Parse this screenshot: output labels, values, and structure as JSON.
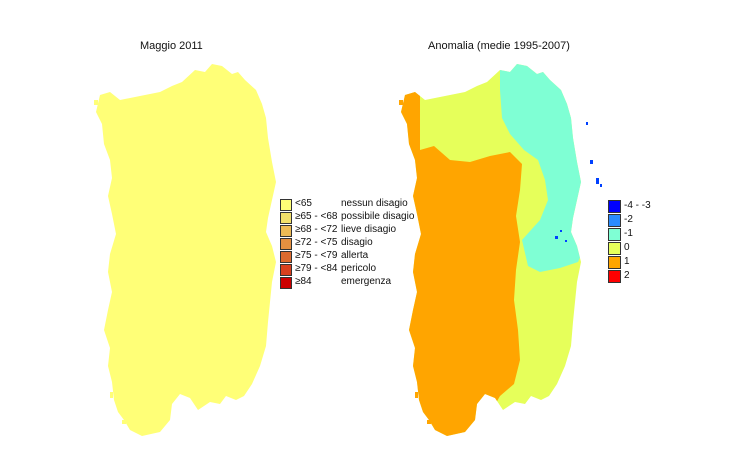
{
  "maps": {
    "left": {
      "title": "Maggio 2011",
      "fill_color": "#FFFF77"
    },
    "right": {
      "title": "Anomalia (medie 1995-2007)",
      "colors": {
        "west": "#FFA500",
        "middle": "#E6FF5A",
        "northeast": "#7FFFD4",
        "dots_blue": "#0040FF"
      }
    }
  },
  "legend_discomfort": {
    "items": [
      {
        "range": "<65",
        "label": "nessun disagio",
        "color": "#FFFF77"
      },
      {
        "range": "≥65 - <68",
        "label": "possibile disagio",
        "color": "#F2E06A"
      },
      {
        "range": "≥68 - <72",
        "label": "lieve disagio",
        "color": "#EEBB55"
      },
      {
        "range": "≥72 - <75",
        "label": "disagio",
        "color": "#E59040"
      },
      {
        "range": "≥75 - <79",
        "label": "allerta",
        "color": "#DD6A2E"
      },
      {
        "range": "≥79 - <84",
        "label": "pericolo",
        "color": "#D8401E"
      },
      {
        "range": "≥84",
        "label": "emergenza",
        "color": "#CC0000"
      }
    ]
  },
  "legend_anomaly": {
    "items": [
      {
        "label": "-4 - -3",
        "color": "#0000FF"
      },
      {
        "label": "-2",
        "color": "#2A8CFF"
      },
      {
        "label": "-1",
        "color": "#7FFFD4"
      },
      {
        "label": "0",
        "color": "#E6FF5A"
      },
      {
        "label": "1",
        "color": "#FFA500"
      },
      {
        "label": "2",
        "color": "#FF0000"
      }
    ]
  }
}
